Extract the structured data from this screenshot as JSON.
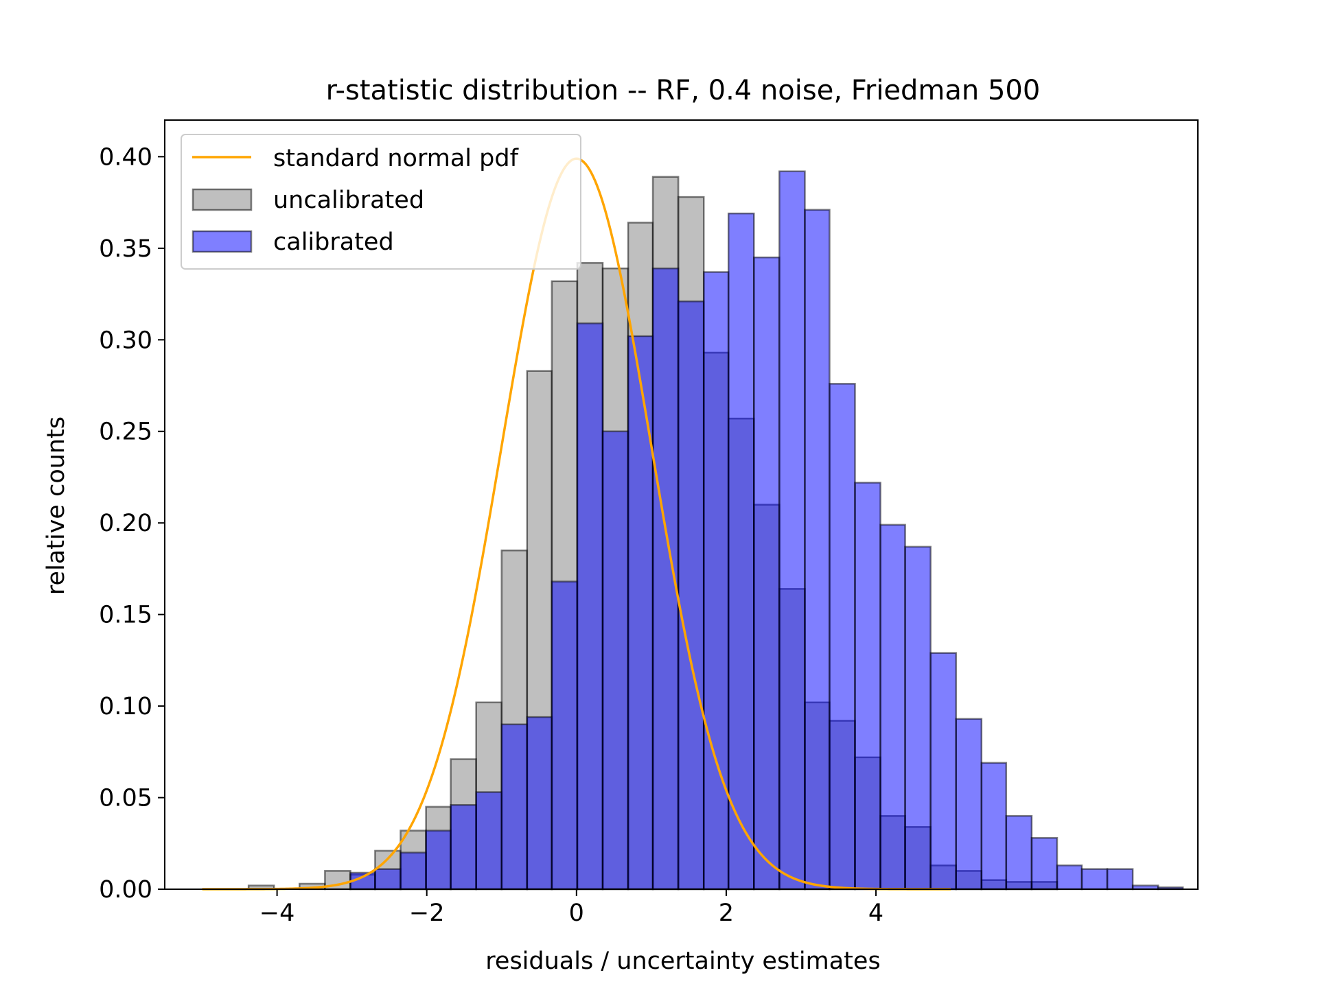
{
  "chart_data": {
    "type": "bar",
    "title": "r-statistic distribution -- RF, 0.4 noise, Friedman 500",
    "xlabel": "residuals / uncertainty estimates",
    "ylabel": "relative counts",
    "xlim": [
      -5.5,
      8.3
    ],
    "ylim": [
      0,
      0.42
    ],
    "xticks": [
      -4,
      -2,
      0,
      2,
      4
    ],
    "xtick_labels": [
      "−4",
      "−2",
      "0",
      "2",
      "4"
    ],
    "yticks": [
      0,
      0.05,
      0.1,
      0.15,
      0.2,
      0.25,
      0.3,
      0.35,
      0.4
    ],
    "ytick_labels": [
      "0.00",
      "0.05",
      "0.10",
      "0.15",
      "0.20",
      "0.25",
      "0.30",
      "0.35",
      "0.40"
    ],
    "grid": false,
    "legend_placement": "upper-left",
    "legend": [
      {
        "label": "standard normal pdf",
        "kind": "line",
        "color": "#ffa500"
      },
      {
        "label": "uncalibrated",
        "kind": "patch",
        "color": "#808080"
      },
      {
        "label": "calibrated",
        "kind": "patch",
        "color": "#0000ff"
      }
    ],
    "series": [
      {
        "name": "uncalibrated",
        "color": "#808080",
        "alpha": 0.5,
        "bins": [
          [
            -4.38,
            -4.04,
            0.002
          ],
          [
            -3.7,
            -3.36,
            0.003
          ],
          [
            -3.36,
            -3.02,
            0.01
          ],
          [
            -3.02,
            -2.69,
            0.008
          ],
          [
            -2.69,
            -2.35,
            0.021
          ],
          [
            -2.35,
            -2.01,
            0.032
          ],
          [
            -2.01,
            -1.68,
            0.045
          ],
          [
            -1.68,
            -1.34,
            0.071
          ],
          [
            -1.34,
            -1.0,
            0.102
          ],
          [
            -1.0,
            -0.66,
            0.185
          ],
          [
            -0.66,
            -0.33,
            0.283
          ],
          [
            -0.33,
            0.01,
            0.332
          ],
          [
            0.01,
            0.35,
            0.342
          ],
          [
            0.35,
            0.69,
            0.339
          ],
          [
            0.69,
            1.02,
            0.364
          ],
          [
            1.02,
            1.36,
            0.389
          ],
          [
            1.36,
            1.7,
            0.378
          ],
          [
            1.7,
            2.03,
            0.293
          ],
          [
            2.03,
            2.37,
            0.257
          ],
          [
            2.37,
            2.71,
            0.21
          ],
          [
            2.71,
            3.05,
            0.164
          ],
          [
            3.05,
            3.38,
            0.102
          ],
          [
            3.38,
            3.72,
            0.092
          ],
          [
            3.72,
            4.06,
            0.072
          ],
          [
            4.06,
            4.39,
            0.04
          ],
          [
            4.39,
            4.73,
            0.034
          ],
          [
            4.73,
            5.07,
            0.013
          ],
          [
            5.07,
            5.41,
            0.01
          ],
          [
            5.41,
            5.74,
            0.005
          ],
          [
            5.74,
            6.08,
            0.004
          ],
          [
            6.08,
            6.42,
            0.004
          ]
        ]
      },
      {
        "name": "calibrated",
        "color": "#0000ff",
        "alpha": 0.5,
        "bins": [
          [
            -3.02,
            -2.69,
            0.009
          ],
          [
            -2.69,
            -2.35,
            0.011
          ],
          [
            -2.35,
            -2.01,
            0.02
          ],
          [
            -2.01,
            -1.68,
            0.032
          ],
          [
            -1.68,
            -1.34,
            0.046
          ],
          [
            -1.34,
            -1.0,
            0.053
          ],
          [
            -1.0,
            -0.66,
            0.09
          ],
          [
            -0.66,
            -0.33,
            0.094
          ],
          [
            -0.33,
            0.01,
            0.168
          ],
          [
            0.01,
            0.35,
            0.309
          ],
          [
            0.35,
            0.69,
            0.25
          ],
          [
            0.69,
            1.02,
            0.302
          ],
          [
            1.02,
            1.36,
            0.339
          ],
          [
            1.36,
            1.7,
            0.321
          ],
          [
            1.7,
            2.03,
            0.337
          ],
          [
            2.03,
            2.37,
            0.369
          ],
          [
            2.37,
            2.71,
            0.345
          ],
          [
            2.71,
            3.05,
            0.392
          ],
          [
            3.05,
            3.38,
            0.371
          ],
          [
            3.38,
            3.72,
            0.276
          ],
          [
            3.72,
            4.06,
            0.222
          ],
          [
            4.06,
            4.39,
            0.199
          ],
          [
            4.39,
            4.73,
            0.187
          ],
          [
            4.73,
            5.07,
            0.129
          ],
          [
            5.07,
            5.41,
            0.093
          ],
          [
            5.41,
            5.74,
            0.069
          ],
          [
            5.74,
            6.08,
            0.04
          ],
          [
            6.08,
            6.42,
            0.028
          ],
          [
            6.42,
            6.75,
            0.013
          ],
          [
            6.75,
            7.09,
            0.011
          ],
          [
            7.09,
            7.43,
            0.011
          ],
          [
            7.43,
            7.77,
            0.002
          ],
          [
            7.77,
            8.1,
            0.001
          ]
        ]
      }
    ],
    "curve": {
      "name": "standard normal pdf",
      "color": "#ffa500",
      "function": "normal_pdf",
      "mean": 0,
      "sd": 1,
      "x_range": [
        -5,
        5
      ]
    }
  }
}
